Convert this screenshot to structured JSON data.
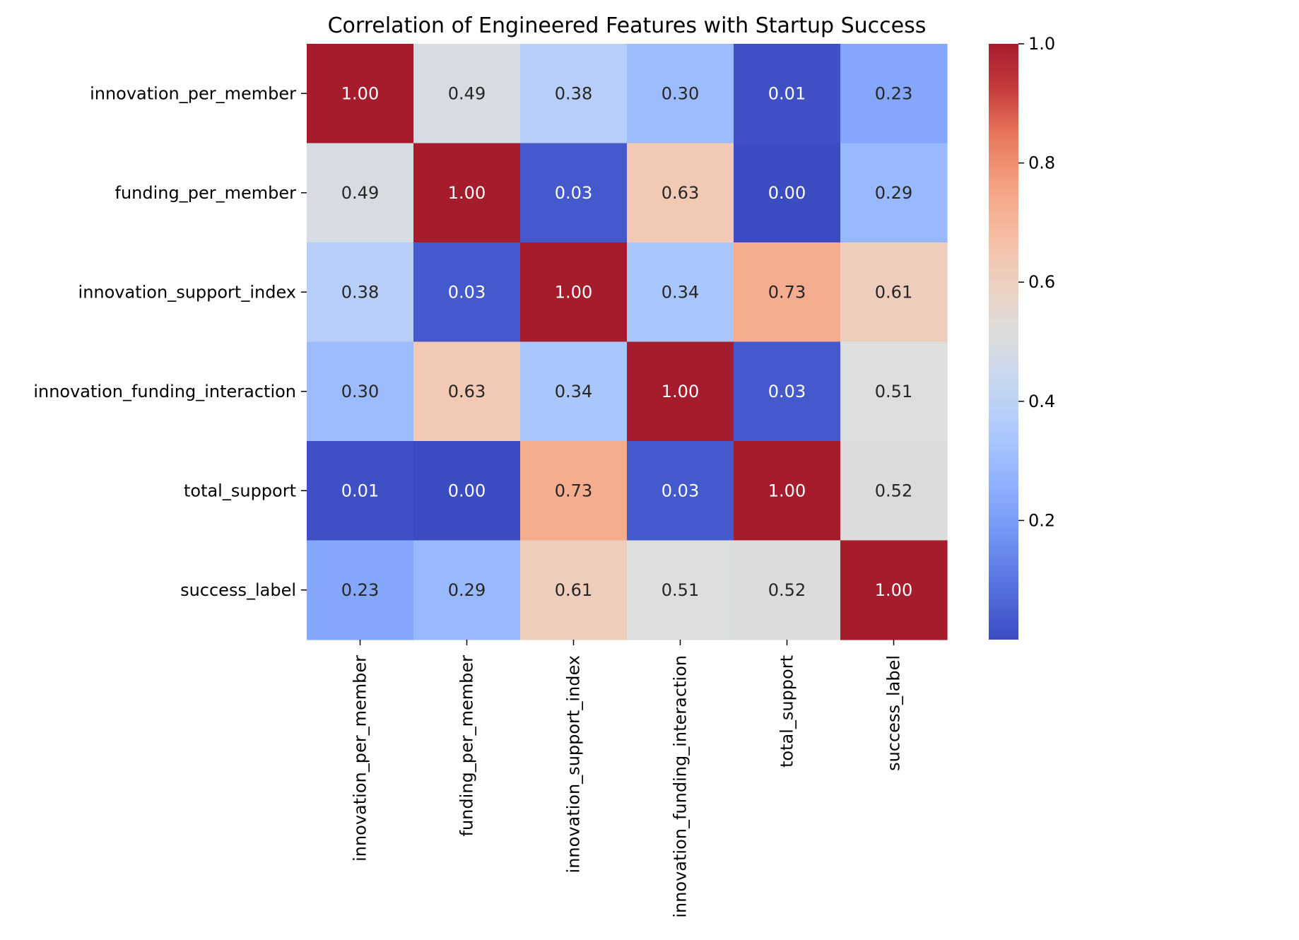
{
  "chart_data": {
    "type": "heatmap",
    "title": "Correlation of Engineered Features with Startup Success",
    "rows": [
      "innovation_per_member",
      "funding_per_member",
      "innovation_support_index",
      "innovation_funding_interaction",
      "total_support",
      "success_label"
    ],
    "columns": [
      "innovation_per_member",
      "funding_per_member",
      "innovation_support_index",
      "innovation_funding_interaction",
      "total_support",
      "success_label"
    ],
    "values": [
      [
        1.0,
        0.49,
        0.38,
        0.3,
        0.01,
        0.23
      ],
      [
        0.49,
        1.0,
        0.03,
        0.63,
        0.0,
        0.29
      ],
      [
        0.38,
        0.03,
        1.0,
        0.34,
        0.73,
        0.61
      ],
      [
        0.3,
        0.63,
        0.34,
        1.0,
        0.03,
        0.51
      ],
      [
        0.01,
        0.0,
        0.73,
        0.03,
        1.0,
        0.52
      ],
      [
        0.23,
        0.29,
        0.61,
        0.51,
        0.52,
        1.0
      ]
    ],
    "value_format_decimals": 2,
    "colormap": "coolwarm",
    "colormap_stops": [
      {
        "v": 0.0,
        "color": "#3b4cc0"
      },
      {
        "v": 0.1,
        "color": "#5470de"
      },
      {
        "v": 0.2,
        "color": "#6f92f3"
      },
      {
        "v": 0.3,
        "color": "#8db0fe"
      },
      {
        "v": 0.4,
        "color": "#aac7fd"
      },
      {
        "v": 0.5,
        "color": "#c5d6f2"
      },
      {
        "v": 0.6,
        "color": "#dcdddd"
      },
      {
        "v": 0.7,
        "color": "#edd1c2"
      },
      {
        "v": 0.8,
        "color": "#f6bda2"
      },
      {
        "v": 0.9,
        "color": "#f5a081"
      },
      {
        "v": 1.0,
        "color": "#e7745b"
      }
    ],
    "colormap_stops_high": [
      {
        "v": 0.0,
        "color": "#e7745b"
      },
      {
        "v": 0.5,
        "color": "#c43c3c"
      },
      {
        "v": 1.0,
        "color": "#a51d2d"
      }
    ],
    "vmin": 0.0,
    "vmax": 1.0,
    "colorbar": {
      "ticks": [
        0.2,
        0.4,
        0.6,
        0.8,
        1.0
      ],
      "tick_labels": [
        "0.2",
        "0.4",
        "0.6",
        "0.8",
        "1.0"
      ]
    },
    "text_color_light": "#ffffff",
    "text_color_dark": "#262626"
  }
}
